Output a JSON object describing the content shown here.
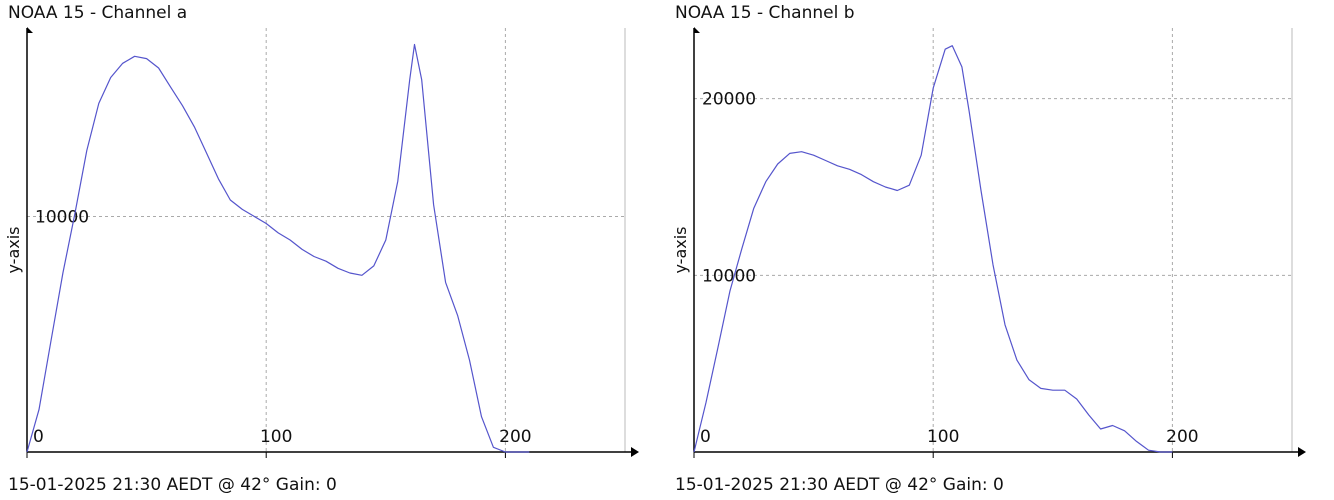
{
  "chart_data": [
    {
      "type": "line",
      "title": "NOAA 15 - Channel a",
      "footer": "15-01-2025 21:30 AEDT @ 42° Gain: 0",
      "ylabel": "y-axis",
      "xlabel": "",
      "xlim": [
        0,
        250
      ],
      "ylim": [
        0,
        18000
      ],
      "x_ticks": [
        0,
        100,
        200
      ],
      "y_ticks": [
        10000
      ],
      "grid": true,
      "line_color": "#5555cc",
      "series": [
        {
          "x": [
            0,
            5,
            10,
            15,
            20,
            25,
            30,
            35,
            40,
            45,
            50,
            55,
            60,
            65,
            70,
            75,
            80,
            85,
            90,
            95,
            100,
            105,
            110,
            115,
            120,
            125,
            130,
            135,
            140,
            145,
            150,
            155,
            160,
            162,
            165,
            170,
            175,
            180,
            185,
            190,
            195,
            200,
            205,
            210
          ],
          "values": [
            0,
            1800,
            4700,
            7600,
            10100,
            12800,
            14800,
            15900,
            16500,
            16800,
            16700,
            16300,
            15500,
            14700,
            13800,
            12700,
            11600,
            10700,
            10300,
            10000,
            9700,
            9300,
            9000,
            8600,
            8300,
            8100,
            7800,
            7600,
            7500,
            7900,
            9000,
            11500,
            15800,
            17300,
            15800,
            10500,
            7200,
            5800,
            3900,
            1500,
            200,
            0,
            0,
            0
          ]
        }
      ]
    },
    {
      "type": "line",
      "title": "NOAA 15 - Channel b",
      "footer": "15-01-2025 21:30 AEDT @ 42° Gain: 0",
      "ylabel": "y-axis",
      "xlabel": "",
      "xlim": [
        0,
        250
      ],
      "ylim": [
        0,
        24000
      ],
      "x_ticks": [
        0,
        100,
        200
      ],
      "y_ticks": [
        10000,
        20000
      ],
      "grid": true,
      "line_color": "#5555cc",
      "series": [
        {
          "x": [
            0,
            5,
            10,
            15,
            20,
            25,
            30,
            35,
            40,
            45,
            50,
            55,
            60,
            65,
            70,
            75,
            80,
            85,
            90,
            95,
            100,
            105,
            108,
            112,
            115,
            120,
            125,
            130,
            135,
            140,
            145,
            150,
            155,
            160,
            165,
            170,
            175,
            180,
            185,
            190,
            195,
            200
          ],
          "values": [
            0,
            2800,
            5900,
            9100,
            11500,
            13800,
            15300,
            16300,
            16900,
            17000,
            16800,
            16500,
            16200,
            16000,
            15700,
            15300,
            15000,
            14800,
            15100,
            16800,
            20600,
            22800,
            23000,
            21800,
            19300,
            14800,
            10600,
            7200,
            5200,
            4100,
            3600,
            3500,
            3500,
            3000,
            2100,
            1300,
            1500,
            1200,
            600,
            100,
            0,
            0
          ]
        }
      ]
    }
  ]
}
